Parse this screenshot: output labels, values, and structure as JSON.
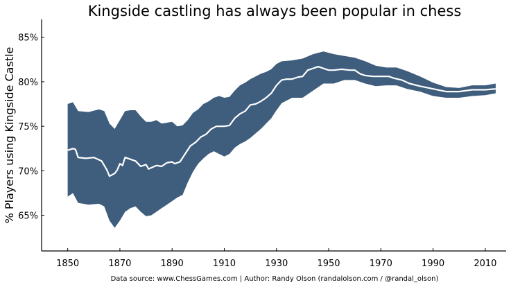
{
  "chart_data": {
    "type": "area",
    "title": "Kingside castling has always been popular in chess",
    "xlabel": "",
    "ylabel": "% Players using Kingside Castle",
    "footer": "Data source: www.ChessGames.com | Author: Randy Olson (randalolson.com / @randal_olson)",
    "xlim": [
      1840,
      2018
    ],
    "ylim": [
      61,
      87
    ],
    "xticks": [
      1850,
      1870,
      1890,
      1910,
      1930,
      1950,
      1970,
      1990,
      2010
    ],
    "xtick_labels": [
      "1850",
      "1870",
      "1890",
      "1910",
      "1930",
      "1950",
      "1970",
      "1990",
      "2010"
    ],
    "yticks": [
      65,
      70,
      75,
      80,
      85
    ],
    "ytick_labels": [
      "65%",
      "70%",
      "75%",
      "80%",
      "85%"
    ],
    "grid": false,
    "colors": {
      "band": "#3F5D7D",
      "line": "#FFFFFF"
    },
    "band": {
      "x": [
        1850,
        1852,
        1854,
        1858,
        1862,
        1864,
        1866,
        1868,
        1870,
        1872,
        1874,
        1876,
        1878,
        1880,
        1882,
        1884,
        1886,
        1888,
        1890,
        1892,
        1894,
        1896,
        1898,
        1900,
        1902,
        1904,
        1906,
        1908,
        1910,
        1912,
        1914,
        1916,
        1918,
        1920,
        1922,
        1924,
        1926,
        1928,
        1930,
        1932,
        1936,
        1940,
        1944,
        1948,
        1952,
        1956,
        1960,
        1964,
        1968,
        1972,
        1976,
        1980,
        1985,
        1990,
        1995,
        2000,
        2005,
        2010,
        2014
      ],
      "upper": [
        77.5,
        77.7,
        76.7,
        76.6,
        76.9,
        76.7,
        75.3,
        74.7,
        75.7,
        76.7,
        76.8,
        76.8,
        76.1,
        75.5,
        75.5,
        75.7,
        75.3,
        75.4,
        75.5,
        75.0,
        75.1,
        75.7,
        76.5,
        76.9,
        77.5,
        77.8,
        78.2,
        78.4,
        78.2,
        78.3,
        79.0,
        79.6,
        79.9,
        80.3,
        80.6,
        80.9,
        81.1,
        81.4,
        82.0,
        82.3,
        82.4,
        82.6,
        83.1,
        83.4,
        83.1,
        82.9,
        82.7,
        82.3,
        81.8,
        81.6,
        81.6,
        81.2,
        80.6,
        79.9,
        79.4,
        79.3,
        79.6,
        79.6,
        79.8
      ],
      "lower": [
        67.1,
        67.5,
        66.4,
        66.2,
        66.3,
        66.0,
        64.4,
        63.6,
        64.4,
        65.4,
        65.8,
        66.0,
        65.4,
        64.9,
        65.0,
        65.4,
        65.8,
        66.2,
        66.6,
        67.0,
        67.3,
        68.7,
        69.9,
        70.8,
        71.4,
        71.9,
        72.2,
        71.9,
        71.6,
        71.9,
        72.6,
        73.0,
        73.3,
        73.7,
        74.2,
        74.7,
        75.3,
        75.9,
        76.8,
        77.6,
        78.2,
        78.2,
        79.0,
        79.8,
        79.8,
        80.2,
        80.2,
        79.8,
        79.5,
        79.6,
        79.6,
        79.2,
        78.9,
        78.4,
        78.2,
        78.2,
        78.4,
        78.5,
        78.7
      ]
    },
    "mean": {
      "x": [
        1850,
        1852,
        1853,
        1854,
        1857,
        1860,
        1863,
        1865,
        1866,
        1868,
        1869,
        1870,
        1871,
        1872,
        1874,
        1876,
        1878,
        1880,
        1881,
        1884,
        1886,
        1888,
        1890,
        1891,
        1893,
        1895,
        1897,
        1899,
        1901,
        1903,
        1905,
        1907,
        1910,
        1912,
        1914,
        1916,
        1918,
        1920,
        1922,
        1924,
        1926,
        1928,
        1930,
        1932,
        1934,
        1936,
        1938,
        1940,
        1942,
        1944,
        1946,
        1948,
        1950,
        1952,
        1955,
        1958,
        1960,
        1962,
        1964,
        1967,
        1970,
        1973,
        1975,
        1978,
        1981,
        1985,
        1990,
        1995,
        1998,
        2000,
        2005,
        2010,
        2014
      ],
      "y": [
        72.3,
        72.5,
        72.4,
        71.5,
        71.4,
        71.5,
        71.1,
        70.1,
        69.4,
        69.7,
        70.1,
        70.8,
        70.6,
        71.5,
        71.3,
        71.1,
        70.5,
        70.7,
        70.2,
        70.6,
        70.5,
        70.9,
        71.0,
        70.8,
        71.0,
        71.9,
        72.8,
        73.2,
        73.8,
        74.1,
        74.7,
        75.0,
        75.0,
        75.1,
        75.9,
        76.4,
        76.7,
        77.4,
        77.5,
        77.8,
        78.2,
        78.7,
        79.6,
        80.2,
        80.3,
        80.3,
        80.5,
        80.6,
        81.3,
        81.5,
        81.7,
        81.5,
        81.3,
        81.3,
        81.4,
        81.3,
        81.3,
        80.9,
        80.7,
        80.6,
        80.6,
        80.6,
        80.4,
        80.2,
        79.8,
        79.5,
        79.2,
        78.9,
        78.9,
        78.9,
        79.1,
        79.1,
        79.2
      ]
    }
  }
}
